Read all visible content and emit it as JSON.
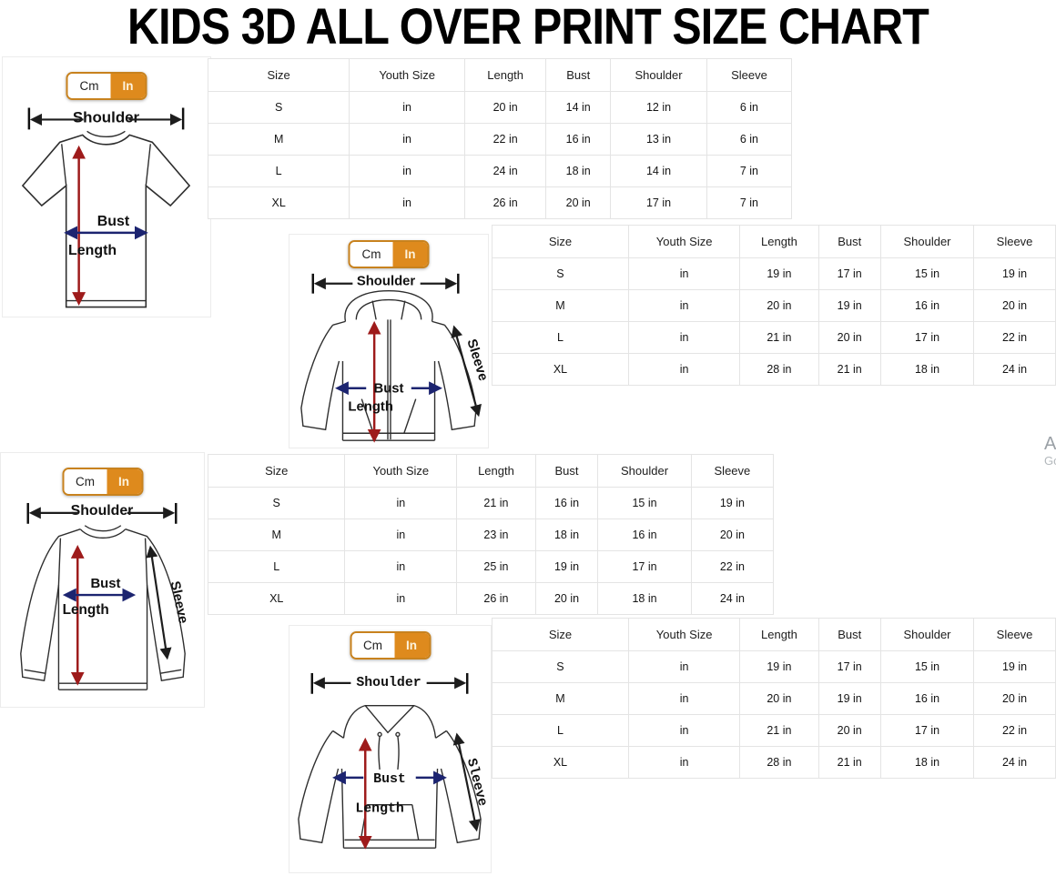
{
  "title": "KIDS 3D ALL OVER PRINT SIZE CHART",
  "unit_toggle": {
    "cm_label": "Cm",
    "in_label": "In",
    "selected": "In"
  },
  "diagram_labels": {
    "shoulder": "Shoulder",
    "bust": "Bust",
    "length": "Length",
    "sleeve": "Sleeve"
  },
  "colors": {
    "accent_orange": "#DE8A1D",
    "toggle_border": "#C8821E",
    "length_arrow_red": "#9E1B1B",
    "bust_arrow_navy": "#1C2470",
    "arrow_black": "#1D1D1D",
    "table_border": "#E4E4E4"
  },
  "sections": [
    {
      "garment": "t-shirt",
      "table": {
        "headers": [
          "Size",
          "Youth Size",
          "Length",
          "Bust",
          "Shoulder",
          "Sleeve"
        ],
        "rows": [
          [
            "S",
            "in",
            "20 in",
            "14 in",
            "12 in",
            "6 in"
          ],
          [
            "M",
            "in",
            "22 in",
            "16 in",
            "13 in",
            "6 in"
          ],
          [
            "L",
            "in",
            "24 in",
            "18 in",
            "14 in",
            "7 in"
          ],
          [
            "XL",
            "in",
            "26 in",
            "20 in",
            "17 in",
            "7 in"
          ]
        ]
      }
    },
    {
      "garment": "zip-hoodie",
      "table": {
        "headers": [
          "Size",
          "Youth Size",
          "Length",
          "Bust",
          "Shoulder",
          "Sleeve"
        ],
        "rows": [
          [
            "S",
            "in",
            "19 in",
            "17 in",
            "15 in",
            "19 in"
          ],
          [
            "M",
            "in",
            "20 in",
            "19 in",
            "16 in",
            "20 in"
          ],
          [
            "L",
            "in",
            "21 in",
            "20 in",
            "17 in",
            "22 in"
          ],
          [
            "XL",
            "in",
            "28 in",
            "21 in",
            "18 in",
            "24 in"
          ]
        ]
      }
    },
    {
      "garment": "long-sleeve-shirt",
      "table": {
        "headers": [
          "Size",
          "Youth Size",
          "Length",
          "Bust",
          "Shoulder",
          "Sleeve"
        ],
        "rows": [
          [
            "S",
            "in",
            "21 in",
            "16 in",
            "15 in",
            "19 in"
          ],
          [
            "M",
            "in",
            "23 in",
            "18 in",
            "16 in",
            "20 in"
          ],
          [
            "L",
            "in",
            "25 in",
            "19 in",
            "17 in",
            "22 in"
          ],
          [
            "XL",
            "in",
            "26 in",
            "20 in",
            "18 in",
            "24 in"
          ]
        ]
      }
    },
    {
      "garment": "hoodie",
      "table": {
        "headers": [
          "Size",
          "Youth Size",
          "Length",
          "Bust",
          "Shoulder",
          "Sleeve"
        ],
        "rows": [
          [
            "S",
            "in",
            "19 in",
            "17 in",
            "15 in",
            "19 in"
          ],
          [
            "M",
            "in",
            "20 in",
            "19 in",
            "16 in",
            "20 in"
          ],
          [
            "L",
            "in",
            "21 in",
            "20 in",
            "17 in",
            "22 in"
          ],
          [
            "XL",
            "in",
            "28 in",
            "21 in",
            "18 in",
            "24 in"
          ]
        ]
      }
    }
  ],
  "edge_text": {
    "line1": "A",
    "line2": "Go"
  }
}
